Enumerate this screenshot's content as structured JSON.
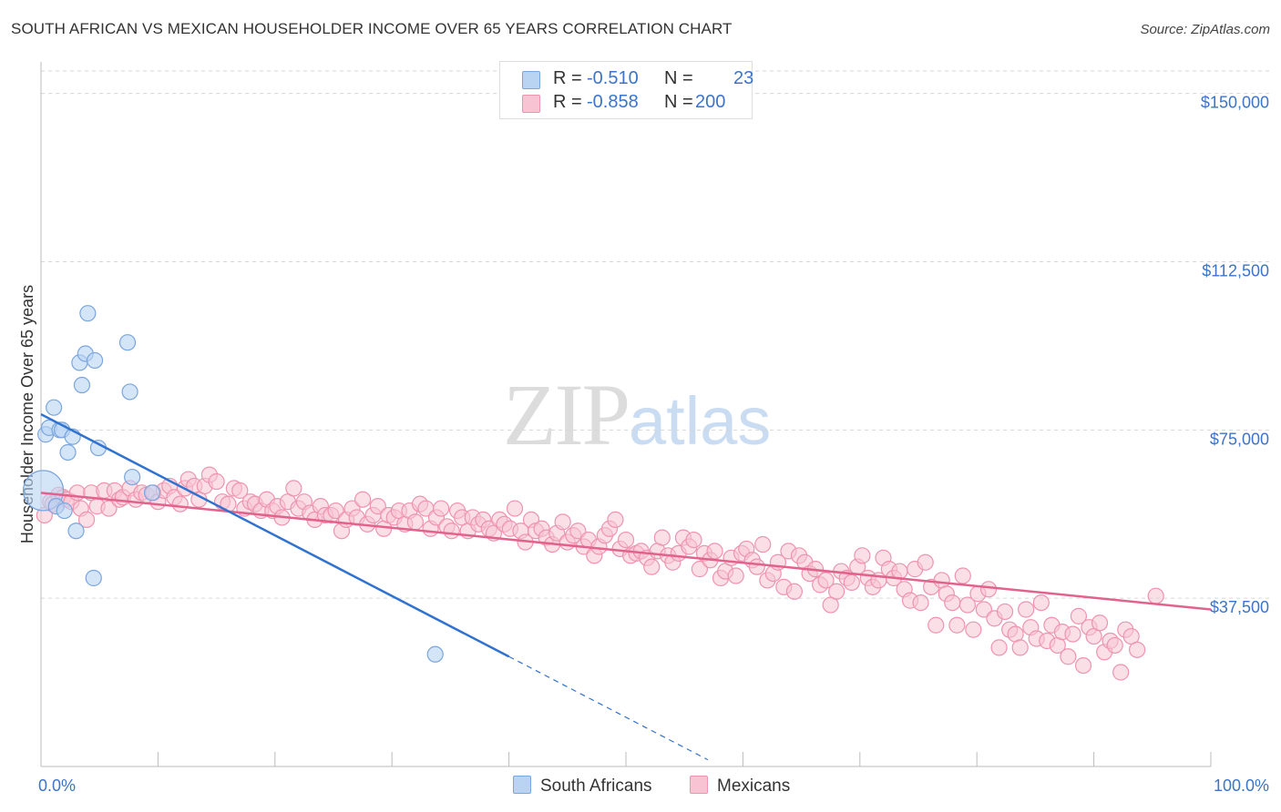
{
  "title": "SOUTH AFRICAN VS MEXICAN HOUSEHOLDER INCOME OVER 65 YEARS CORRELATION CHART",
  "source": "Source: ZipAtlas.com",
  "watermark": {
    "zip": "ZIP",
    "atlas": "atlas"
  },
  "legend": {
    "rows": [
      {
        "r_label": "R =",
        "r_value": "-0.510",
        "n_label": "N =",
        "n_value": "23"
      },
      {
        "r_label": "R =",
        "r_value": "-0.858",
        "n_label": "N =",
        "n_value": "200"
      }
    ],
    "bottom": [
      "South Africans",
      "Mexicans"
    ]
  },
  "colors": {
    "south_africans_fill": "#b9d3f3",
    "south_africans_stroke": "#7aa6df",
    "south_africans_line": "#2f72cf",
    "mexicans_fill": "#f8c4d4",
    "mexicans_stroke": "#ee93b0",
    "mexicans_line": "#e2628e",
    "axis_label": "#3b74c9",
    "grid": "#d6d6d6"
  },
  "chart_data": {
    "type": "scatter",
    "title": "SOUTH AFRICAN VS MEXICAN HOUSEHOLDER INCOME OVER 65 YEARS CORRELATION CHART",
    "xlabel": "",
    "ylabel": "Householder Income Over 65 years",
    "xlim": [
      0,
      100
    ],
    "ylim": [
      0,
      155000
    ],
    "x_tick_labels": [
      "0.0%",
      "100.0%"
    ],
    "y_ticks": [
      37500,
      75000,
      112500,
      150000
    ],
    "y_tick_labels": [
      "$37,500",
      "$75,000",
      "$112,500",
      "$150,000"
    ],
    "grid": true,
    "legend_position": "top-center",
    "series": [
      {
        "name": "South Africans",
        "points": [
          [
            0.2,
            61500,
            "L"
          ],
          [
            0.4,
            74000
          ],
          [
            0.7,
            75500
          ],
          [
            1.1,
            80000
          ],
          [
            1.3,
            58000
          ],
          [
            1.6,
            75000
          ],
          [
            1.8,
            75000
          ],
          [
            2.0,
            57000
          ],
          [
            2.3,
            70000
          ],
          [
            2.7,
            73500
          ],
          [
            3.0,
            52500
          ],
          [
            3.3,
            90000
          ],
          [
            3.5,
            85000
          ],
          [
            3.8,
            92000
          ],
          [
            4.0,
            101000
          ],
          [
            4.5,
            42000
          ],
          [
            4.6,
            90500
          ],
          [
            4.9,
            71000
          ],
          [
            7.4,
            94500
          ],
          [
            7.6,
            83500
          ],
          [
            7.8,
            64500
          ],
          [
            9.5,
            61000
          ],
          [
            33.7,
            25000
          ]
        ],
        "trend": {
          "x0": 0,
          "y0": 78500,
          "x1": 40,
          "y1": 24500,
          "dashed_to_x": 57,
          "dashed_to_y": 1500
        }
      },
      {
        "name": "Mexicans",
        "points": [
          [
            0.3,
            56000
          ],
          [
            0.8,
            59000
          ],
          [
            1.0,
            58500
          ],
          [
            1.3,
            58000
          ],
          [
            1.5,
            60500
          ],
          [
            1.9,
            60000
          ],
          [
            2.2,
            59500
          ],
          [
            2.6,
            59000
          ],
          [
            3.1,
            61000
          ],
          [
            3.4,
            57500
          ],
          [
            3.9,
            55000
          ],
          [
            4.3,
            61000
          ],
          [
            4.8,
            58000
          ],
          [
            5.4,
            61500
          ],
          [
            5.8,
            57500
          ],
          [
            6.3,
            61500
          ],
          [
            6.7,
            59500
          ],
          [
            7.0,
            60000
          ],
          [
            7.6,
            62000
          ],
          [
            8.1,
            59500
          ],
          [
            8.6,
            61000
          ],
          [
            9.0,
            60500
          ],
          [
            9.6,
            61000
          ],
          [
            10.0,
            59000
          ],
          [
            10.5,
            61500
          ],
          [
            11.0,
            62500
          ],
          [
            11.4,
            60000
          ],
          [
            11.9,
            58500
          ],
          [
            12.3,
            62000
          ],
          [
            12.6,
            64000
          ],
          [
            13.1,
            62500
          ],
          [
            13.5,
            59500
          ],
          [
            14.0,
            62500
          ],
          [
            14.4,
            65000
          ],
          [
            15.0,
            63500
          ],
          [
            15.5,
            59000
          ],
          [
            16.0,
            58500
          ],
          [
            16.5,
            62000
          ],
          [
            17.0,
            61500
          ],
          [
            17.4,
            57500
          ],
          [
            17.9,
            59000
          ],
          [
            18.3,
            58500
          ],
          [
            18.8,
            57000
          ],
          [
            19.3,
            59500
          ],
          [
            19.8,
            57000
          ],
          [
            20.2,
            58000
          ],
          [
            20.6,
            55500
          ],
          [
            21.1,
            59000
          ],
          [
            21.6,
            62000
          ],
          [
            22.0,
            57500
          ],
          [
            22.5,
            59000
          ],
          [
            23.0,
            56500
          ],
          [
            23.4,
            55000
          ],
          [
            23.9,
            58000
          ],
          [
            24.3,
            56000
          ],
          [
            24.8,
            56000
          ],
          [
            25.2,
            57000
          ],
          [
            25.7,
            52500
          ],
          [
            26.1,
            55000
          ],
          [
            26.6,
            57500
          ],
          [
            27.0,
            55500
          ],
          [
            27.5,
            59500
          ],
          [
            27.9,
            54000
          ],
          [
            28.4,
            56000
          ],
          [
            28.8,
            58000
          ],
          [
            29.3,
            53000
          ],
          [
            29.7,
            56000
          ],
          [
            30.2,
            55500
          ],
          [
            30.6,
            57000
          ],
          [
            31.1,
            54000
          ],
          [
            31.5,
            57000
          ],
          [
            32.0,
            54500
          ],
          [
            32.4,
            58500
          ],
          [
            32.9,
            57500
          ],
          [
            33.3,
            53000
          ],
          [
            33.8,
            55500
          ],
          [
            34.2,
            57500
          ],
          [
            34.7,
            53500
          ],
          [
            35.1,
            52500
          ],
          [
            35.6,
            57000
          ],
          [
            36.0,
            55500
          ],
          [
            36.5,
            52500
          ],
          [
            36.9,
            55500
          ],
          [
            37.4,
            54000
          ],
          [
            37.8,
            55000
          ],
          [
            38.3,
            53000
          ],
          [
            38.7,
            52000
          ],
          [
            39.2,
            55000
          ],
          [
            39.6,
            54000
          ],
          [
            40.1,
            53000
          ],
          [
            40.5,
            57500
          ],
          [
            41.0,
            52500
          ],
          [
            41.4,
            50000
          ],
          [
            41.9,
            55000
          ],
          [
            42.3,
            52500
          ],
          [
            42.8,
            53000
          ],
          [
            43.2,
            51000
          ],
          [
            43.7,
            49500
          ],
          [
            44.1,
            52000
          ],
          [
            44.6,
            54500
          ],
          [
            45.0,
            50000
          ],
          [
            45.5,
            51500
          ],
          [
            45.9,
            52500
          ],
          [
            46.4,
            49000
          ],
          [
            46.8,
            50500
          ],
          [
            47.3,
            47000
          ],
          [
            47.7,
            49000
          ],
          [
            48.2,
            51500
          ],
          [
            48.6,
            53000
          ],
          [
            49.1,
            55000
          ],
          [
            49.5,
            48500
          ],
          [
            50.0,
            50500
          ],
          [
            50.4,
            47000
          ],
          [
            50.9,
            47500
          ],
          [
            51.3,
            48000
          ],
          [
            51.8,
            46500
          ],
          [
            52.2,
            44500
          ],
          [
            52.7,
            48000
          ],
          [
            53.1,
            51000
          ],
          [
            53.6,
            47000
          ],
          [
            54.0,
            45500
          ],
          [
            54.5,
            47500
          ],
          [
            54.9,
            51000
          ],
          [
            55.4,
            49000
          ],
          [
            55.8,
            50500
          ],
          [
            56.3,
            44000
          ],
          [
            56.7,
            47500
          ],
          [
            57.2,
            46000
          ],
          [
            57.6,
            48000
          ],
          [
            58.1,
            42000
          ],
          [
            58.5,
            43500
          ],
          [
            59.0,
            46500
          ],
          [
            59.4,
            42500
          ],
          [
            59.9,
            47500
          ],
          [
            60.3,
            48500
          ],
          [
            60.8,
            46000
          ],
          [
            61.2,
            44500
          ],
          [
            61.7,
            49500
          ],
          [
            62.1,
            41500
          ],
          [
            62.6,
            43000
          ],
          [
            63.0,
            45500
          ],
          [
            63.5,
            40000
          ],
          [
            63.9,
            48000
          ],
          [
            64.4,
            39000
          ],
          [
            64.8,
            47000
          ],
          [
            65.3,
            45500
          ],
          [
            65.7,
            43000
          ],
          [
            66.2,
            44000
          ],
          [
            66.6,
            40500
          ],
          [
            67.1,
            41500
          ],
          [
            67.5,
            36000
          ],
          [
            68.0,
            39000
          ],
          [
            68.4,
            43500
          ],
          [
            68.9,
            42000
          ],
          [
            69.3,
            41000
          ],
          [
            69.8,
            44500
          ],
          [
            70.2,
            47000
          ],
          [
            70.7,
            42000
          ],
          [
            71.1,
            40000
          ],
          [
            71.6,
            41500
          ],
          [
            72.0,
            46500
          ],
          [
            72.5,
            44000
          ],
          [
            72.9,
            42000
          ],
          [
            73.4,
            43500
          ],
          [
            73.8,
            39500
          ],
          [
            74.3,
            37000
          ],
          [
            74.7,
            44000
          ],
          [
            75.2,
            36500
          ],
          [
            75.6,
            45500
          ],
          [
            76.1,
            40000
          ],
          [
            76.5,
            31500
          ],
          [
            77.0,
            41500
          ],
          [
            77.4,
            38500
          ],
          [
            77.9,
            36500
          ],
          [
            78.3,
            31500
          ],
          [
            78.8,
            42500
          ],
          [
            79.2,
            36000
          ],
          [
            79.7,
            30500
          ],
          [
            80.1,
            38500
          ],
          [
            80.6,
            35000
          ],
          [
            81.0,
            39500
          ],
          [
            81.5,
            33000
          ],
          [
            81.9,
            26500
          ],
          [
            82.4,
            34500
          ],
          [
            82.8,
            30500
          ],
          [
            83.3,
            29500
          ],
          [
            83.7,
            26500
          ],
          [
            84.2,
            35000
          ],
          [
            84.6,
            31000
          ],
          [
            85.1,
            28500
          ],
          [
            85.5,
            36500
          ],
          [
            86.0,
            28000
          ],
          [
            86.4,
            31500
          ],
          [
            86.9,
            27000
          ],
          [
            87.3,
            30000
          ],
          [
            87.8,
            24500
          ],
          [
            88.2,
            29500
          ],
          [
            88.7,
            33500
          ],
          [
            89.1,
            22500
          ],
          [
            89.6,
            31000
          ],
          [
            90.0,
            29000
          ],
          [
            90.5,
            32000
          ],
          [
            90.9,
            25500
          ],
          [
            91.4,
            28000
          ],
          [
            91.8,
            27000
          ],
          [
            92.3,
            21000
          ],
          [
            92.7,
            30500
          ],
          [
            93.2,
            29000
          ],
          [
            93.7,
            26000
          ],
          [
            95.3,
            38000
          ]
        ],
        "trend": {
          "x0": 0,
          "y0": 61000,
          "x1": 100,
          "y1": 35000
        }
      }
    ]
  }
}
